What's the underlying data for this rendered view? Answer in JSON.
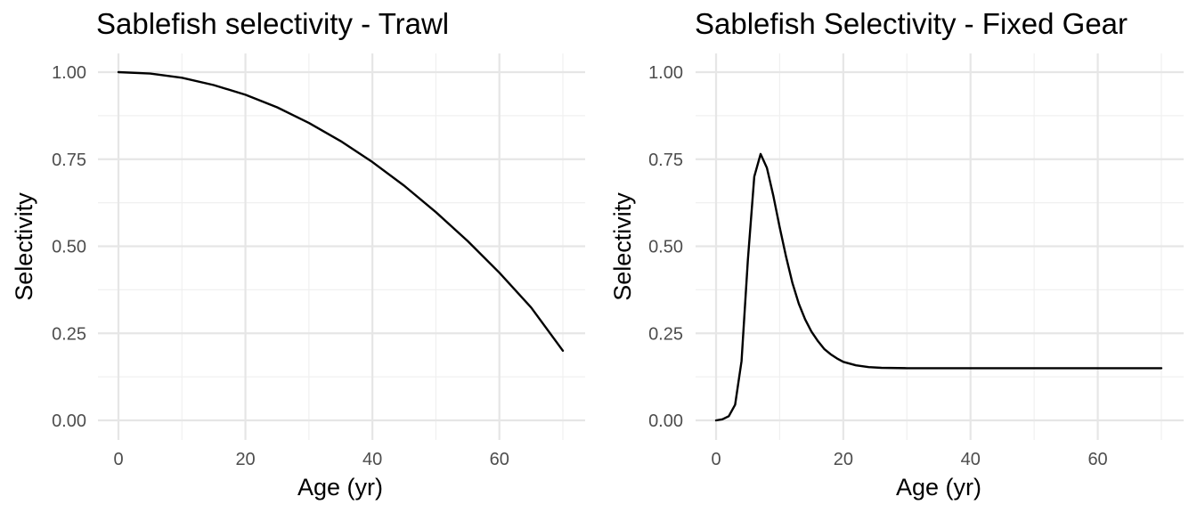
{
  "chart_data": [
    {
      "type": "line",
      "title": "Sablefish selectivity - Trawl",
      "xlabel": "Age (yr)",
      "ylabel": "Selectivity",
      "xlim": [
        0,
        70
      ],
      "ylim": [
        0,
        1
      ],
      "x_ticks": [
        0,
        20,
        40,
        60
      ],
      "y_ticks": [
        0,
        0.25,
        0.5,
        0.75,
        1
      ],
      "x_tick_labels": [
        "0",
        "20",
        "40",
        "60"
      ],
      "y_tick_labels": [
        "0.00",
        "0.25",
        "0.50",
        "0.75",
        "1.00"
      ],
      "grid": true,
      "series": [
        {
          "color": "#000000",
          "x": [
            0,
            5,
            10,
            15,
            20,
            25,
            30,
            35,
            40,
            45,
            50,
            55,
            60,
            65,
            70
          ],
          "y": [
            1.0,
            0.996,
            0.984,
            0.963,
            0.935,
            0.899,
            0.854,
            0.802,
            0.742,
            0.674,
            0.598,
            0.515,
            0.424,
            0.324,
            0.2
          ]
        }
      ]
    },
    {
      "type": "line",
      "title": "Sablefish Selectivity - Fixed Gear",
      "xlabel": "Age (yr)",
      "ylabel": "Selectivity",
      "xlim": [
        0,
        70
      ],
      "ylim": [
        0,
        1
      ],
      "x_ticks": [
        0,
        20,
        40,
        60
      ],
      "y_ticks": [
        0,
        0.25,
        0.5,
        0.75,
        1
      ],
      "x_tick_labels": [
        "0",
        "20",
        "40",
        "60"
      ],
      "y_tick_labels": [
        "0.00",
        "0.25",
        "0.50",
        "0.75",
        "1.00"
      ],
      "grid": true,
      "series": [
        {
          "color": "#000000",
          "x": [
            0,
            1,
            2,
            3,
            4,
            5,
            6,
            7,
            8,
            9,
            10,
            11,
            12,
            13,
            14,
            15,
            16,
            17,
            18,
            19,
            20,
            22,
            24,
            26,
            30,
            40,
            50,
            60,
            70
          ],
          "y": [
            0.0,
            0.003,
            0.012,
            0.045,
            0.17,
            0.46,
            0.7,
            0.765,
            0.725,
            0.645,
            0.555,
            0.47,
            0.395,
            0.335,
            0.29,
            0.255,
            0.228,
            0.205,
            0.19,
            0.178,
            0.168,
            0.158,
            0.153,
            0.151,
            0.15,
            0.15,
            0.15,
            0.15,
            0.15
          ]
        }
      ]
    }
  ]
}
